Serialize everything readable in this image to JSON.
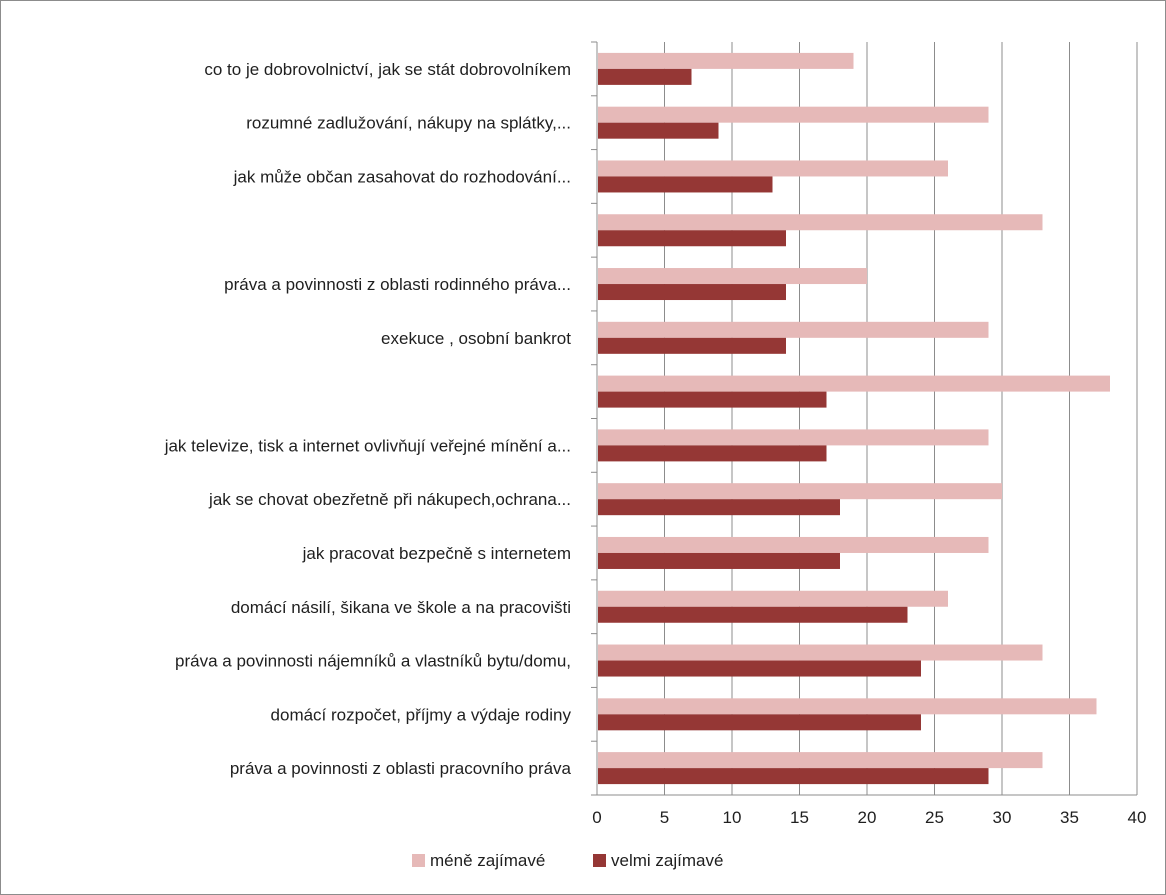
{
  "chart_data": {
    "type": "bar",
    "orientation": "horizontal",
    "title": "",
    "xlabel": "",
    "ylabel": "",
    "xlim": [
      0,
      40
    ],
    "ticks": [
      "0",
      "5",
      "10",
      "15",
      "20",
      "25",
      "30",
      "35",
      "40"
    ],
    "grid": "vertical",
    "legend_position": "bottom",
    "categories": [
      "co to je dobrovolnictví, jak se stát dobrovolníkem",
      "rozumné zadlužování, nákupy na splátky,...",
      "jak může občan zasahovat do rozhodování...",
      "",
      "práva a povinnosti z oblasti rodinného práva...",
      "exekuce , osobní bankrot",
      "",
      "jak televize, tisk a internet ovlivňují veřejné mínění a...",
      "jak se chovat obezřetně při nákupech,ochrana...",
      "jak pracovat bezpečně s internetem",
      "domácí násilí, šikana ve škole a na pracovišti",
      "práva a povinnosti  nájemníků a vlastníků bytu/domu,",
      "domácí rozpočet, příjmy a výdaje rodiny",
      "práva a povinnosti z oblasti pracovního práva"
    ],
    "series": [
      {
        "name": "méně zajímavé",
        "color": "#e6b9b8",
        "values": [
          19,
          29,
          26,
          33,
          20,
          29,
          38,
          29,
          30,
          29,
          26,
          33,
          37,
          33
        ]
      },
      {
        "name": "velmi zajímavé",
        "color": "#953735",
        "values": [
          7,
          9,
          13,
          14,
          14,
          14,
          17,
          17,
          18,
          18,
          23,
          24,
          24,
          29
        ]
      }
    ]
  }
}
